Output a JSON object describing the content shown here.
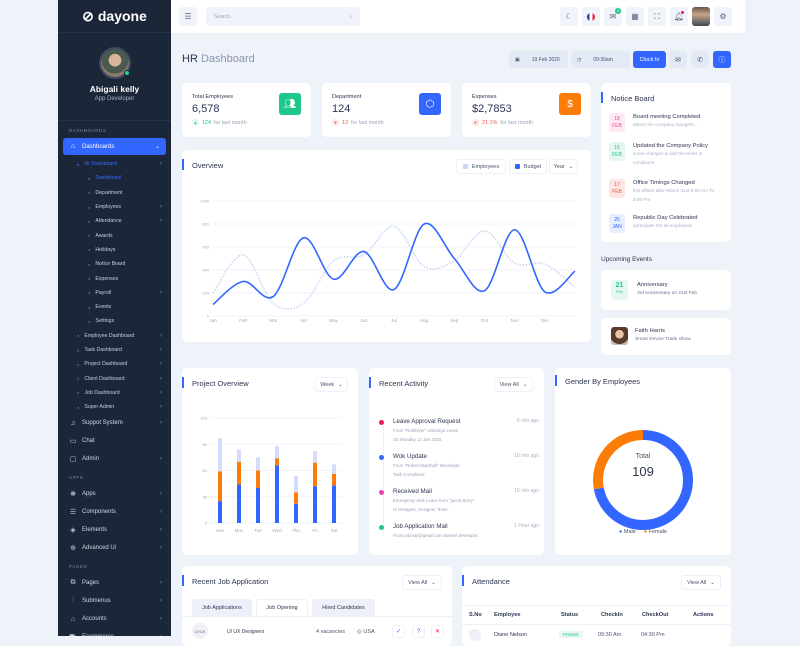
{
  "brand": "dayone",
  "profile": {
    "name": "Abigali kelly",
    "role": "App Developer"
  },
  "sidebar": {
    "section_dashboards": "DASHBOARDS",
    "dashboards": "Dashboards",
    "hr_dashboard": "Hr Dashboard",
    "hr_items": [
      "Dashboard",
      "Department",
      "Employees",
      "Attendance",
      "Awards",
      "Holidays",
      "Notice Board",
      "Expenses",
      "Payroll",
      "Events",
      "Settings"
    ],
    "dash_items": [
      "Employee Dashboard",
      "Task Dashboard",
      "Project Dashboard",
      "Client Dashboard",
      "Job Dashboard",
      "Super Admin"
    ],
    "support": "Suppot System",
    "chat": "Chat",
    "admin": "Admin",
    "section_apps": "APPS",
    "apps": [
      "Apps",
      "Components",
      "Elements",
      "Advanced Ui"
    ],
    "section_pages": "PAGES",
    "pages": [
      "Pages",
      "Submenus",
      "Accounts",
      "Ecommerce"
    ]
  },
  "topbar": {
    "search_placeholder": "Search...",
    "notification_count": "3"
  },
  "header": {
    "title_bold": "HR",
    "title_light": "Dashboard",
    "date": "19 Feb 2020",
    "time": "09:30am",
    "clock_in": "Clock In"
  },
  "stats": [
    {
      "label": "Total Employees",
      "value": "6,578",
      "change": "124",
      "period": "for last month",
      "color": "#1dc88a",
      "icon": "users-icon"
    },
    {
      "label": "Department",
      "value": "124",
      "change": "13",
      "period": "for last month",
      "color": "#3366ff",
      "icon": "cube-icon"
    },
    {
      "label": "Expenses",
      "value": "$2,7853",
      "change": "21.1%",
      "period": "for last month",
      "color": "#fb7d07",
      "icon": "dollar-icon"
    }
  ],
  "notice": {
    "title": "Notice Board",
    "items": [
      {
        "day": "18",
        "mon": "FEB",
        "title": "Board meeting Completed",
        "text": "attend the company mangers...",
        "color": "#f542a4",
        "bg": "#fde8f4"
      },
      {
        "day": "16",
        "mon": "FEB",
        "title": "Updated the Company Policy",
        "text": "some changes & add the terms & conditions",
        "color": "#1dc88a",
        "bg": "#e4f8f0"
      },
      {
        "day": "17",
        "mon": "FEB",
        "title": "Office Timings Changed",
        "text": "this effetct after March 01st 9:00 Am To 5:00 Pm",
        "color": "#f2564a",
        "bg": "#fde6e4"
      },
      {
        "day": "26",
        "mon": "JAN",
        "title": "Republic Day Celebrated",
        "text": "participate the all employess",
        "color": "#3366ff",
        "bg": "#e6eeff"
      }
    ]
  },
  "events": {
    "title": "Upcoming Events",
    "anniv_day": "21",
    "anniv_mon": "Feb",
    "anniv_title": "Anniversary",
    "anniv_text": "3rd Anniversary on 21st Feb",
    "person": "Faith Harris",
    "person_text": "Smart Device Trade Show"
  },
  "chart_data": [
    {
      "type": "line",
      "title": "Overview",
      "x": [
        "Jan",
        "Feb",
        "Mar",
        "Apr",
        "May",
        "Jun",
        "Jul",
        "Aug",
        "Sep",
        "Oct",
        "Nov",
        "Dec",
        ""
      ],
      "ylim": [
        0,
        1000
      ],
      "yticks": [
        0,
        200,
        400,
        600,
        800,
        1000
      ],
      "grid": true,
      "legend_position": "top-right",
      "filter": "Year",
      "series": [
        {
          "name": "Employees",
          "color": "#c9d4f5",
          "style": "dotted",
          "values": [
            200,
            530,
            110,
            110,
            480,
            530,
            780,
            430,
            480,
            740,
            460,
            450,
            250
          ]
        },
        {
          "name": "Budget",
          "color": "#3366ff",
          "style": "solid",
          "values": [
            100,
            300,
            170,
            680,
            320,
            560,
            230,
            800,
            500,
            220,
            750,
            210,
            390
          ]
        }
      ]
    },
    {
      "type": "bar",
      "stacked": true,
      "title": "Project Overview",
      "filter": "Week",
      "categories": [
        "Sun",
        "Mon",
        "Tue",
        "Wed",
        "Thu",
        "Fri",
        "Sat"
      ],
      "ylim": [
        0,
        120
      ],
      "yticks": [
        0,
        30,
        60,
        90,
        120
      ],
      "series": [
        {
          "color": "#3366ff",
          "values": [
            25,
            44,
            40,
            66,
            22,
            42,
            43
          ]
        },
        {
          "color": "#fb7d07",
          "values": [
            34,
            26,
            20,
            8,
            13,
            27,
            13
          ]
        },
        {
          "color": "#d3ddfa",
          "values": [
            38,
            14,
            15,
            14,
            19,
            13,
            11
          ]
        }
      ]
    },
    {
      "type": "pie",
      "title": "Gender By Employees",
      "center_label": "Total",
      "center_value": "109",
      "series": [
        {
          "name": "Male",
          "value": 72,
          "color": "#3366ff"
        },
        {
          "name": "Female",
          "value": 28,
          "color": "#fb7d07"
        }
      ]
    }
  ],
  "activity": {
    "title": "Recent Activity",
    "view_all": "View All",
    "items": [
      {
        "title": "Leave Approval Request",
        "time": "6 min ago",
        "l1": "From \"RuthDyer\" UiDesign Leave",
        "l2": "On Monday 12 Jan 2020.",
        "color": "#f01850"
      },
      {
        "title": "Wok Update",
        "time": "10 min ago",
        "l1": "From \"Robert Marshall\" Developer",
        "l2": "Task Completed.",
        "color": "#3366ff"
      },
      {
        "title": "Received Mail",
        "time": "15 min ago",
        "l1": "Emergency Sick Leave from \"jacob Berry\"",
        "l2": "Ui Designer, Designer Team.",
        "color": "#e83fb6"
      },
      {
        "title": "Job Application Mail",
        "time": "1 Hour ago",
        "l1": "From jobmail@gmail.com laravel developer.",
        "l2": "",
        "color": "#1dc88a"
      }
    ]
  },
  "jobs": {
    "title": "Recent Job Application",
    "view_all": "View All",
    "tabs": [
      "Job Applications",
      "Job Opening",
      "Hired Candidates"
    ],
    "row": {
      "badge": "UI/UX",
      "name": "UI UX Designers",
      "vacancies": "4 vacancies",
      "location": "USA"
    }
  },
  "attendance": {
    "title": "Attendance",
    "view_all": "View All",
    "columns": [
      "S.No",
      "Employee",
      "Status",
      "CheckIn",
      "CheckOut",
      "Actions"
    ],
    "row": {
      "name": "Diane Nelson",
      "status": "Present",
      "checkin": "09:30 Am",
      "checkout": "04:30 Pm"
    }
  }
}
